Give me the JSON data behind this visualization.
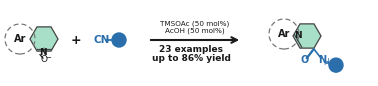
{
  "bg_color": "#ffffff",
  "mint_color": "#a8dfc8",
  "blue_color": "#2a6fac",
  "dark_color": "#1a1a1a",
  "gray_color": "#777777",
  "reaction_text1": "TMSOAc (50 mol%)",
  "reaction_text2": "AcOH (50 mol%)",
  "yield_text1": "23 examples",
  "yield_text2": "up to 86% yield",
  "figsize": [
    3.78,
    0.86
  ],
  "dpi": 100
}
